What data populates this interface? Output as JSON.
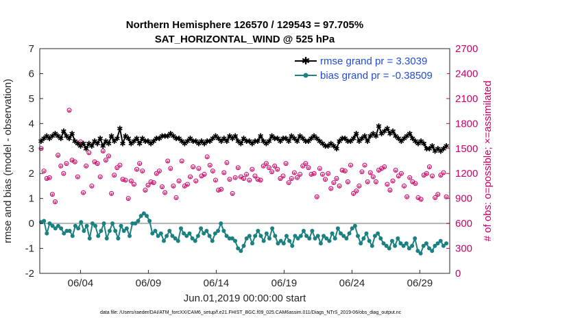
{
  "chart_data": {
    "type": "line",
    "title": "Northern Hemisphere 126570 / 129543 = 97.705%",
    "subtitle": "SAT_HORIZONTAL_WIND @ 525 hPa",
    "xlabel": "Jun.01,2019 00:00:00 start",
    "ylabel": "rmse and bias (model - observation)",
    "ylabel_right": "# of obs: o=possible; ×=assimilated",
    "xlim": [
      1,
      31.2
    ],
    "ylim": [
      -2,
      7
    ],
    "ylim_right": [
      0,
      2700
    ],
    "x_ticks": [
      4,
      9,
      14,
      19,
      24,
      29
    ],
    "x_tick_labels": [
      "06/04",
      "06/09",
      "06/14",
      "06/19",
      "06/24",
      "06/29"
    ],
    "y_ticks": [
      -2,
      -1,
      0,
      1,
      2,
      3,
      4,
      5,
      6,
      7
    ],
    "y_tick_labels": [
      "-2",
      "-1",
      "0",
      "1",
      "2",
      "3",
      "4",
      "5",
      "6",
      "7"
    ],
    "y_ticks_right": [
      0,
      300,
      600,
      900,
      1200,
      1500,
      1800,
      2100,
      2400,
      2700
    ],
    "y_tick_labels_right": [
      "0",
      "300",
      "600",
      "900",
      "1200",
      "1500",
      "1800",
      "2100",
      "2400",
      "2700"
    ],
    "legend_position": "top-right",
    "grid": false,
    "zero_line": true,
    "series": [
      {
        "name": "rmse grand pr = 3.3039",
        "axis": "left",
        "color": "#000000",
        "marker": "star",
        "values": [
          3.3,
          3.4,
          3.5,
          3.4,
          3.5,
          3.6,
          3.5,
          3.4,
          3.7,
          3.5,
          3.4,
          3.6,
          3.3,
          3.2,
          3.1,
          3.2,
          3.0,
          3.2,
          3.1,
          3.3,
          3.2,
          3.4,
          3.1,
          3.3,
          3.2,
          3.5,
          3.3,
          3.4,
          3.8,
          3.2,
          3.5,
          3.4,
          3.2,
          3.3,
          3.4,
          3.2,
          3.4,
          3.3,
          3.3,
          3.2,
          3.3,
          3.4,
          3.4,
          3.5,
          3.5,
          3.5,
          3.6,
          3.5,
          3.4,
          3.4,
          3.3,
          3.2,
          3.3,
          3.4,
          3.3,
          3.3,
          3.2,
          3.3,
          3.2,
          3.3,
          3.3,
          3.4,
          3.5,
          3.4,
          3.3,
          3.4,
          3.3,
          3.5,
          3.4,
          3.5,
          3.3,
          3.2,
          3.4,
          3.3,
          3.3,
          3.2,
          3.3,
          3.3,
          3.5,
          3.3,
          3.2,
          3.3,
          3.5,
          3.4,
          3.4,
          3.3,
          3.4,
          3.4,
          3.3,
          3.5,
          3.4,
          3.3,
          3.5,
          3.4,
          3.3,
          3.3,
          3.4,
          3.5,
          3.4,
          3.3,
          3.2,
          3.1,
          3.1,
          3.2,
          3.1,
          3.0,
          3.3,
          3.4,
          3.4,
          3.3,
          3.3,
          3.4,
          3.6,
          3.3,
          3.4,
          3.5,
          3.3,
          3.5,
          3.6,
          3.5,
          3.9,
          3.6,
          3.7,
          3.8,
          3.6,
          3.7,
          3.5,
          3.4,
          3.3,
          3.4,
          3.5,
          3.6,
          3.4,
          3.3,
          3.2,
          3.3,
          3.2,
          3.0,
          3.0,
          3.1,
          2.9,
          3.0,
          2.9,
          3.0,
          3.1
        ]
      },
      {
        "name": "bias grand pr = -0.38509",
        "axis": "left",
        "color": "#1a8080",
        "marker": "circle",
        "values": [
          0.05,
          0.1,
          -0.4,
          0.0,
          -0.1,
          -0.2,
          -0.1,
          -0.2,
          -0.4,
          -0.3,
          -0.3,
          -0.5,
          -0.1,
          -0.2,
          0.05,
          -0.3,
          -0.1,
          -0.6,
          0.0,
          -0.1,
          -0.5,
          -0.3,
          0.0,
          -0.6,
          -0.3,
          0.0,
          -0.3,
          -0.6,
          -0.1,
          -0.3,
          -0.2,
          -0.5,
          0.0,
          0.0,
          0.1,
          0.3,
          0.4,
          0.3,
          0.1,
          -0.4,
          -0.3,
          -0.5,
          -0.4,
          -0.7,
          -0.5,
          -0.3,
          -0.5,
          -0.6,
          -0.7,
          -0.2,
          -0.4,
          -0.5,
          -0.4,
          -0.6,
          -0.7,
          -0.5,
          -0.2,
          -0.4,
          -0.3,
          -0.5,
          -0.7,
          -0.4,
          -0.3,
          0.0,
          -0.3,
          -0.5,
          -0.6,
          -0.6,
          -0.7,
          -1.0,
          -1.1,
          -0.9,
          -0.6,
          -0.5,
          -0.8,
          -0.5,
          -0.3,
          -0.5,
          -0.7,
          -0.4,
          -0.6,
          -0.2,
          -0.5,
          -0.8,
          -0.7,
          -0.8,
          -0.5,
          -0.7,
          -0.9,
          -0.5,
          -0.6,
          -0.5,
          -0.3,
          -0.5,
          -0.6,
          -0.3,
          -0.6,
          -0.5,
          -0.8,
          -0.5,
          -0.6,
          -0.7,
          -0.4,
          -0.6,
          -0.2,
          -0.4,
          -0.5,
          -0.6,
          -0.4,
          -0.2,
          -0.1,
          -0.5,
          -0.8,
          -0.6,
          -0.4,
          -0.7,
          -0.9,
          -0.5,
          -0.4,
          -0.6,
          -0.8,
          -0.9,
          -1.0,
          -0.7,
          -0.9,
          -0.6,
          -0.8,
          -0.9,
          -0.8,
          -1.0,
          -0.9,
          -0.6,
          -1.1,
          -1.2,
          -0.9,
          -0.8,
          -1.0,
          -1.1,
          -0.9,
          -0.8,
          -0.7,
          -0.9,
          -0.8
        ]
      },
      {
        "name": "obs possible",
        "axis": "right",
        "color": "#cc0066",
        "marker": "o",
        "values": [
          1500,
          1230,
          1140,
          1150,
          950,
          860,
          1420,
          1290,
          1200,
          1320,
          1960,
          1360,
          1340,
          1160,
          1580,
          970,
          1290,
          1450,
          1050,
          1340,
          1320,
          1160,
          1470,
          1360,
          1410,
          960,
          1180,
          1270,
          1300,
          1130,
          1120,
          900,
          1110,
          1070,
          1250,
          1320,
          1230,
          1000,
          1060,
          1100,
          1090,
          1200,
          1230,
          1040,
          970,
          1350,
          1260,
          1050,
          910,
          1110,
          1350,
          1050,
          1070,
          1160,
          1280,
          1110,
          1260,
          1170,
          1190,
          1400,
          1300,
          1230,
          1120,
          1000,
          1010,
          1210,
          1330,
          1130,
          960,
          1150,
          1270,
          1160,
          1140,
          1190,
          1120,
          1250,
          1170,
          1130,
          1120,
          1290,
          1320,
          1270,
          1220,
          1290,
          1250,
          1140,
          1170,
          1320,
          1090,
          1140,
          1210,
          1150,
          1190,
          1290,
          1320,
          1270,
          1190,
          1200,
          920,
          1260,
          1190,
          1130,
          1200,
          1020,
          1090,
          1140,
          1050,
          1240,
          1230,
          1100,
          1300,
          960,
          990,
          1050,
          1220,
          1300,
          1100,
          1210,
          1160,
          1100,
          1240,
          1260,
          1280,
          1070,
          1000,
          1110,
          1240,
          1170,
          1200,
          1050,
          920,
          1150,
          1100,
          1080,
          910,
          890,
          1180,
          1200,
          1280,
          1170,
          910,
          950,
          1180,
          1210,
          920
        ]
      },
      {
        "name": "obs assimilated",
        "axis": "right",
        "color": "#cc0066",
        "marker": "x",
        "values": [
          1480,
          1210,
          1120,
          1130,
          930,
          840,
          1400,
          1270,
          1180,
          1300,
          1940,
          1340,
          1320,
          1140,
          1560,
          950,
          1270,
          1430,
          1030,
          1320,
          1300,
          1140,
          1450,
          1340,
          1390,
          940,
          1160,
          1250,
          1280,
          1110,
          1100,
          880,
          1090,
          1050,
          1230,
          1300,
          1210,
          980,
          1040,
          1080,
          1070,
          1180,
          1210,
          1020,
          950,
          1330,
          1240,
          1030,
          890,
          1090,
          1330,
          1030,
          1050,
          1140,
          1260,
          1090,
          1240,
          1150,
          1170,
          1380,
          1280,
          1210,
          1100,
          980,
          990,
          1190,
          1310,
          1110,
          940,
          1130,
          1250,
          1140,
          1120,
          1170,
          1100,
          1230,
          1150,
          1110,
          1100,
          1270,
          1300,
          1250,
          1200,
          1270,
          1230,
          1120,
          1150,
          1300,
          1070,
          1120,
          1190,
          1130,
          1170,
          1270,
          1300,
          1250,
          1170,
          1180,
          900,
          1240,
          1170,
          1110,
          1180,
          1000,
          1070,
          1120,
          1030,
          1220,
          1210,
          1080,
          1280,
          940,
          970,
          1030,
          1200,
          1280,
          1080,
          1190,
          1140,
          1080,
          1220,
          1240,
          1260,
          1050,
          980,
          1090,
          1220,
          1150,
          1180,
          1030,
          900,
          1130,
          1080,
          1060,
          890,
          870,
          1160,
          1180,
          1260,
          1150,
          890,
          930,
          1160,
          1190,
          900
        ]
      }
    ],
    "footnote": "data file: /Users/raeder/DAI/ATM_forcXX/CAM6_setup/f.e21.FHIST_BGC.f09_025.CAM6assim.011/Diags_NTrS_2019-06/obs_diag_output.nc"
  }
}
